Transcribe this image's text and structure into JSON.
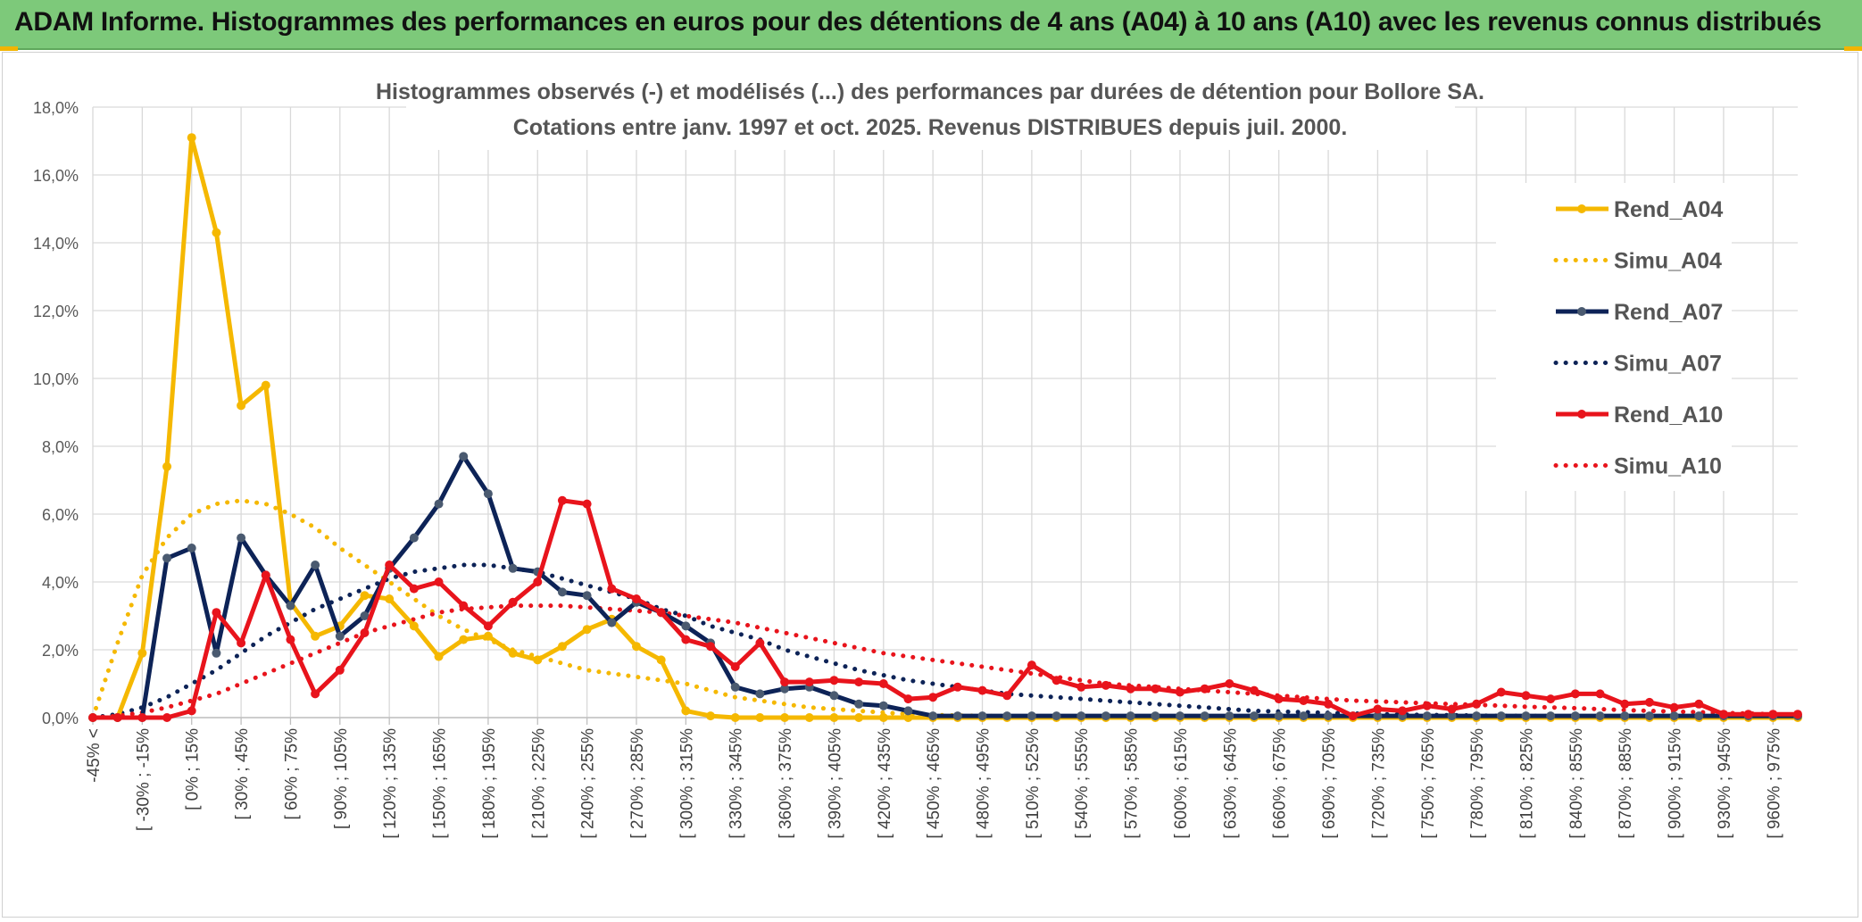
{
  "banner": {
    "title": "ADAM Informe. Histogrammes des performances en euros pour des détentions de 4 ans (A04) à 10 ans (A10) avec les revenus connus distribués"
  },
  "chart_data": {
    "type": "line",
    "title": "Histogrammes observés (-) et modélisés (...) des performances par durées de détention pour Bollore SA.",
    "subtitle": "Cotations entre janv. 1997 et oct. 2025. Revenus DISTRIBUES depuis juil. 2000.",
    "xlabel": "",
    "ylabel": "",
    "ylim": [
      0,
      18
    ],
    "y_ticks": [
      "0,0%",
      "2,0%",
      "4,0%",
      "6,0%",
      "8,0%",
      "10,0%",
      "12,0%",
      "14,0%",
      "16,0%",
      "18,0%"
    ],
    "grid": true,
    "legend_position": "right",
    "x_labels": [
      "-45% <",
      "[ -30% ; -15%",
      "[ 0% ; 15%",
      "[ 30% ; 45%",
      "[ 60% ; 75%",
      "[ 90% ; 105%",
      "[ 120% ; 135%",
      "[ 150% ; 165%",
      "[ 180% ; 195%",
      "[ 210% ; 225%",
      "[ 240% ; 255%",
      "[ 270% ; 285%",
      "[ 300% ; 315%",
      "[ 330% ; 345%",
      "[ 360% ; 375%",
      "[ 390% ; 405%",
      "[ 420% ; 435%",
      "[ 450% ; 465%",
      "[ 480% ; 495%",
      "[ 510% ; 525%",
      "[ 540% ; 555%",
      "[ 570% ; 585%",
      "[ 600% ; 615%",
      "[ 630% ; 645%",
      "[ 660% ; 675%",
      "[ 690% ; 705%",
      "[ 720% ; 735%",
      "[ 750% ; 765%",
      "[ 780% ; 795%",
      "[ 810% ; 825%",
      "[ 840% ; 855%",
      "[ 870% ; 885%",
      "[ 900% ; 915%",
      "[ 930% ; 945%",
      "[ 960% ; 975%"
    ],
    "series": [
      {
        "name": "Rend_A04",
        "color": "#f5b800",
        "style": "solid",
        "values": [
          0,
          0,
          1.9,
          7.4,
          17.1,
          14.3,
          9.2,
          9.8,
          3.4,
          2.4,
          2.7,
          3.6,
          3.5,
          2.7,
          1.8,
          2.3,
          2.4,
          1.9,
          1.7,
          2.1,
          2.6,
          2.9,
          2.1,
          1.7,
          0.2,
          0.05,
          0,
          0,
          0,
          0,
          0,
          0,
          0,
          0,
          0,
          0,
          0,
          0,
          0,
          0,
          0,
          0,
          0,
          0,
          0,
          0,
          0,
          0,
          0,
          0,
          0,
          0,
          0,
          0,
          0,
          0,
          0,
          0,
          0,
          0,
          0,
          0,
          0,
          0,
          0,
          0,
          0,
          0,
          0,
          0
        ]
      },
      {
        "name": "Simu_A04",
        "color": "#f5b800",
        "style": "dotted",
        "values": [
          0,
          2.2,
          4.2,
          5.3,
          6.0,
          6.3,
          6.4,
          6.3,
          6.0,
          5.6,
          5.0,
          4.5,
          4.0,
          3.5,
          3.0,
          2.6,
          2.3,
          2.0,
          1.8,
          1.6,
          1.4,
          1.3,
          1.2,
          1.1,
          1.0,
          0.8,
          0.6,
          0.5,
          0.4,
          0.3,
          0.25,
          0.2,
          0.15,
          0.1,
          0.08,
          0.06,
          0.05,
          0.04,
          0.03,
          0.02,
          0.02,
          0.01,
          0.01,
          0,
          0,
          0,
          0,
          0,
          0,
          0,
          0,
          0,
          0,
          0,
          0,
          0,
          0,
          0,
          0,
          0,
          0,
          0,
          0,
          0,
          0,
          0,
          0,
          0,
          0,
          0
        ]
      },
      {
        "name": "Rend_A07",
        "color": "#0d2357",
        "style": "solid",
        "values": [
          0,
          0,
          0,
          4.7,
          5.0,
          1.9,
          5.3,
          4.2,
          3.3,
          4.5,
          2.4,
          3.0,
          4.4,
          5.3,
          6.3,
          7.7,
          6.6,
          4.4,
          4.3,
          3.7,
          3.6,
          2.8,
          3.4,
          3.1,
          2.7,
          2.2,
          0.9,
          0.7,
          0.85,
          0.9,
          0.65,
          0.4,
          0.35,
          0.2,
          0.05,
          0.05,
          0.05,
          0.05,
          0.05,
          0.05,
          0.05,
          0.05,
          0.05,
          0.05,
          0.05,
          0.05,
          0.05,
          0.05,
          0.05,
          0.05,
          0.05,
          0.05,
          0.05,
          0.05,
          0.05,
          0.05,
          0.05,
          0.05,
          0.05,
          0.05,
          0.05,
          0.05,
          0.05,
          0.05,
          0.05,
          0.05,
          0.05,
          0.05,
          0.05,
          0.05
        ]
      },
      {
        "name": "Simu_A07",
        "color": "#0d2357",
        "style": "dotted",
        "values": [
          0,
          0.1,
          0.3,
          0.6,
          1.0,
          1.4,
          1.9,
          2.4,
          2.8,
          3.2,
          3.5,
          3.8,
          4.1,
          4.3,
          4.4,
          4.5,
          4.5,
          4.4,
          4.3,
          4.1,
          3.9,
          3.7,
          3.5,
          3.2,
          3.0,
          2.7,
          2.5,
          2.3,
          2.0,
          1.8,
          1.6,
          1.4,
          1.25,
          1.1,
          1.0,
          0.9,
          0.8,
          0.7,
          0.65,
          0.6,
          0.55,
          0.5,
          0.45,
          0.4,
          0.35,
          0.3,
          0.25,
          0.2,
          0.18,
          0.16,
          0.14,
          0.12,
          0.1,
          0.09,
          0.08,
          0.07,
          0.06,
          0.05,
          0.05,
          0.04,
          0.04,
          0.03,
          0.03,
          0.02,
          0.02,
          0.02,
          0.01,
          0.01,
          0.01,
          0.01
        ]
      },
      {
        "name": "Rend_A10",
        "color": "#e8141c",
        "style": "solid",
        "values": [
          0,
          0,
          0,
          0,
          0.2,
          3.1,
          2.2,
          4.2,
          2.3,
          0.7,
          1.4,
          2.5,
          4.5,
          3.8,
          4.0,
          3.3,
          2.7,
          3.4,
          4.0,
          6.4,
          6.3,
          3.8,
          3.5,
          3.1,
          2.3,
          2.1,
          1.5,
          2.2,
          1.05,
          1.05,
          1.1,
          1.05,
          1.0,
          0.55,
          0.6,
          0.9,
          0.8,
          0.65,
          1.55,
          1.1,
          0.9,
          0.95,
          0.85,
          0.85,
          0.75,
          0.85,
          1.0,
          0.8,
          0.55,
          0.5,
          0.4,
          0.05,
          0.25,
          0.2,
          0.35,
          0.25,
          0.4,
          0.75,
          0.65,
          0.55,
          0.7,
          0.7,
          0.4,
          0.45,
          0.3,
          0.4,
          0.1,
          0.1,
          0.1,
          0.1
        ]
      },
      {
        "name": "Simu_A10",
        "color": "#e8141c",
        "style": "dotted",
        "values": [
          0,
          0.05,
          0.15,
          0.3,
          0.5,
          0.7,
          1.0,
          1.3,
          1.6,
          1.9,
          2.2,
          2.5,
          2.7,
          2.9,
          3.1,
          3.2,
          3.25,
          3.3,
          3.3,
          3.3,
          3.25,
          3.2,
          3.15,
          3.1,
          3.0,
          2.9,
          2.8,
          2.65,
          2.5,
          2.35,
          2.2,
          2.05,
          1.9,
          1.8,
          1.7,
          1.6,
          1.5,
          1.4,
          1.3,
          1.2,
          1.1,
          1.0,
          0.95,
          0.9,
          0.85,
          0.8,
          0.75,
          0.7,
          0.65,
          0.6,
          0.55,
          0.5,
          0.48,
          0.45,
          0.42,
          0.4,
          0.38,
          0.35,
          0.32,
          0.3,
          0.28,
          0.25,
          0.22,
          0.2,
          0.18,
          0.16,
          0.14,
          0.12,
          0.1,
          0.08
        ]
      }
    ]
  }
}
